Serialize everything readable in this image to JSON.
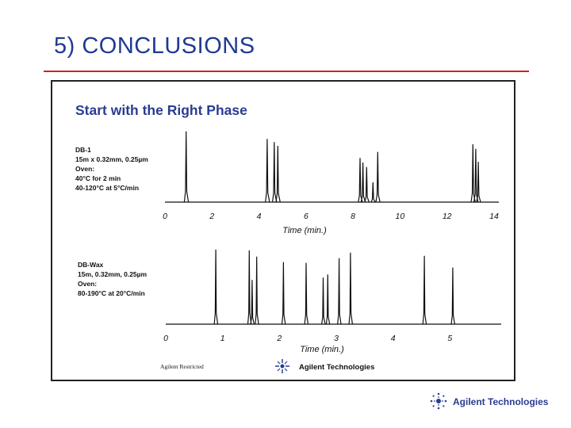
{
  "slide": {
    "title": "5) CONCLUSIONS",
    "footer_brand": "Agilent Technologies",
    "title_color": "#1f3a93",
    "rule_color": "#cc2222"
  },
  "panel": {
    "heading": "Start with the Right Phase",
    "restricted_label": "Agilent Restricted",
    "inner_brand": "Agilent Technologies",
    "heading_color": "#2a3c90"
  },
  "chart_data": [
    {
      "type": "line",
      "name": "DB-1",
      "conditions": [
        "DB-1",
        "15m x 0.32mm, 0.25µm",
        "Oven:",
        "40°C for 2 min",
        "40-120°C at 5°C/min"
      ],
      "xlabel": "Time (min.)",
      "xticks": [
        "0",
        "2",
        "4",
        "6",
        "8",
        "10",
        "12",
        "14"
      ],
      "xlim": [
        0,
        14
      ],
      "grid": false,
      "peaks": [
        {
          "t": 0.9,
          "h": 0.93
        },
        {
          "t": 4.35,
          "h": 0.83
        },
        {
          "t": 4.65,
          "h": 0.79
        },
        {
          "t": 4.8,
          "h": 0.74
        },
        {
          "t": 8.3,
          "h": 0.58
        },
        {
          "t": 8.42,
          "h": 0.52
        },
        {
          "t": 8.58,
          "h": 0.46
        },
        {
          "t": 8.85,
          "h": 0.26
        },
        {
          "t": 9.05,
          "h": 0.66
        },
        {
          "t": 13.1,
          "h": 0.76
        },
        {
          "t": 13.22,
          "h": 0.7
        },
        {
          "t": 13.33,
          "h": 0.53
        }
      ]
    },
    {
      "type": "line",
      "name": "DB-Wax",
      "conditions": [
        "DB-Wax",
        "15m, 0.32mm, 0.25µm",
        "Oven:",
        "80-190°C at 20°C/min"
      ],
      "xlabel": "Time (min.)",
      "xticks": [
        "0",
        "1",
        "2",
        "3",
        "4",
        "5"
      ],
      "xlim": [
        0,
        5.4
      ],
      "grid": false,
      "peaks": [
        {
          "t": 0.88,
          "h": 0.96
        },
        {
          "t": 1.47,
          "h": 0.95
        },
        {
          "t": 1.52,
          "h": 0.57
        },
        {
          "t": 1.6,
          "h": 0.87
        },
        {
          "t": 2.07,
          "h": 0.8
        },
        {
          "t": 2.47,
          "h": 0.79
        },
        {
          "t": 2.77,
          "h": 0.6
        },
        {
          "t": 2.85,
          "h": 0.64
        },
        {
          "t": 3.05,
          "h": 0.85
        },
        {
          "t": 3.25,
          "h": 0.92
        },
        {
          "t": 4.55,
          "h": 0.88
        },
        {
          "t": 5.05,
          "h": 0.73
        }
      ]
    }
  ]
}
